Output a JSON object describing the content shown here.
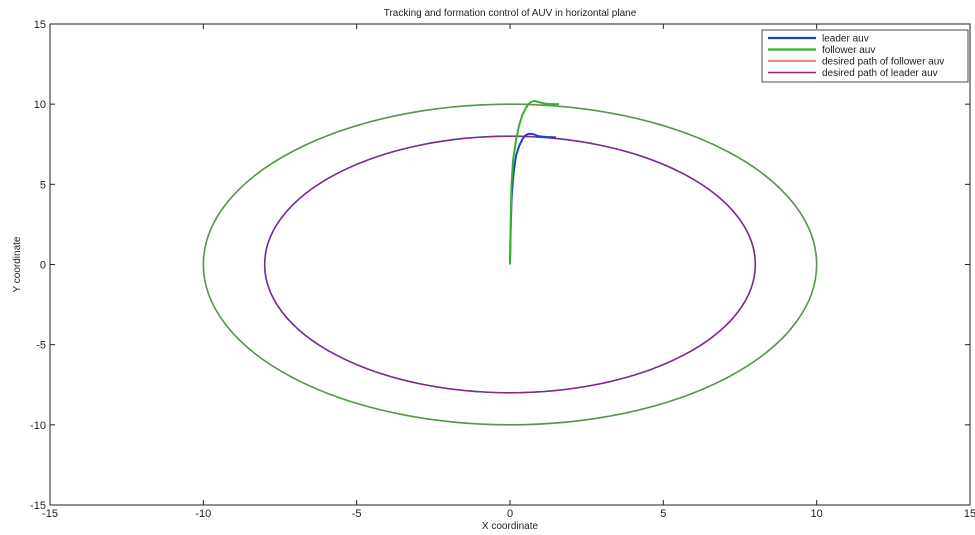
{
  "chart_data": {
    "type": "line",
    "title": "Tracking and formation control of AUV in horizontal plane",
    "xlabel": "X coordinate",
    "ylabel": "Y coordinate",
    "xlim": [
      -15,
      15
    ],
    "ylim": [
      -15,
      15
    ],
    "xticks": [
      -15,
      -10,
      -5,
      0,
      5,
      10,
      15
    ],
    "yticks": [
      -15,
      -10,
      -5,
      0,
      5,
      10,
      15
    ],
    "grid": false,
    "legend_position": "top-right",
    "series": [
      {
        "name": "leader auv",
        "color": "#1f3fd0",
        "x": [
          0,
          0.02,
          0.05,
          0.1,
          0.15,
          0.2,
          0.3,
          0.4,
          0.5,
          0.6,
          0.7,
          0.8,
          0.9,
          1.0,
          1.2,
          1.5
        ],
        "y": [
          0,
          2.0,
          4.0,
          5.4,
          6.2,
          6.8,
          7.4,
          7.8,
          8.05,
          8.15,
          8.15,
          8.1,
          8.02,
          7.98,
          7.95,
          7.93
        ]
      },
      {
        "name": "follower auv",
        "color": "#2fb52f",
        "x": [
          0,
          0.02,
          0.05,
          0.1,
          0.2,
          0.3,
          0.4,
          0.5,
          0.6,
          0.7,
          0.8,
          0.9,
          1.0,
          1.1,
          1.3,
          1.6
        ],
        "y": [
          0,
          2.5,
          5.0,
          6.5,
          7.8,
          8.7,
          9.3,
          9.7,
          10.0,
          10.15,
          10.2,
          10.15,
          10.1,
          10.05,
          10.0,
          10.0
        ]
      },
      {
        "name": "desired path of follower auv",
        "color": "#e8603a",
        "shape": "ellipse",
        "center": [
          0,
          0
        ],
        "radius_x": 10,
        "radius_y": 10
      },
      {
        "name": "desired path of leader auv",
        "color": "#a02080",
        "shape": "ellipse",
        "center": [
          0,
          0
        ],
        "radius_x": 8,
        "radius_y": 8
      }
    ]
  }
}
